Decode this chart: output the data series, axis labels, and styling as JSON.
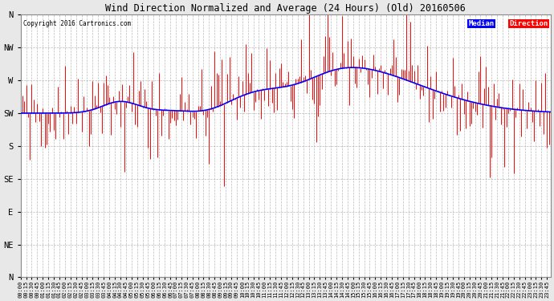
{
  "title": "Wind Direction Normalized and Average (24 Hours) (Old) 20160506",
  "copyright": "Copyright 2016 Cartronics.com",
  "ytick_labels": [
    "N",
    "NW",
    "W",
    "SW",
    "S",
    "SE",
    "E",
    "NE",
    "N"
  ],
  "ytick_values": [
    360,
    315,
    270,
    225,
    180,
    135,
    90,
    45,
    0
  ],
  "ymin": 0,
  "ymax": 360,
  "background_color": "#e8e8e8",
  "plot_background": "#ffffff",
  "grid_color": "#aaaaaa",
  "bar_color": "#ff0000",
  "line_color": "#0000ff",
  "legend_median_bg": "#0000ff",
  "legend_direction_bg": "#ff0000",
  "legend_text_color": "#ffffff",
  "num_points": 288,
  "seed": 42,
  "figwidth": 6.9,
  "figheight": 3.75,
  "dpi": 100
}
